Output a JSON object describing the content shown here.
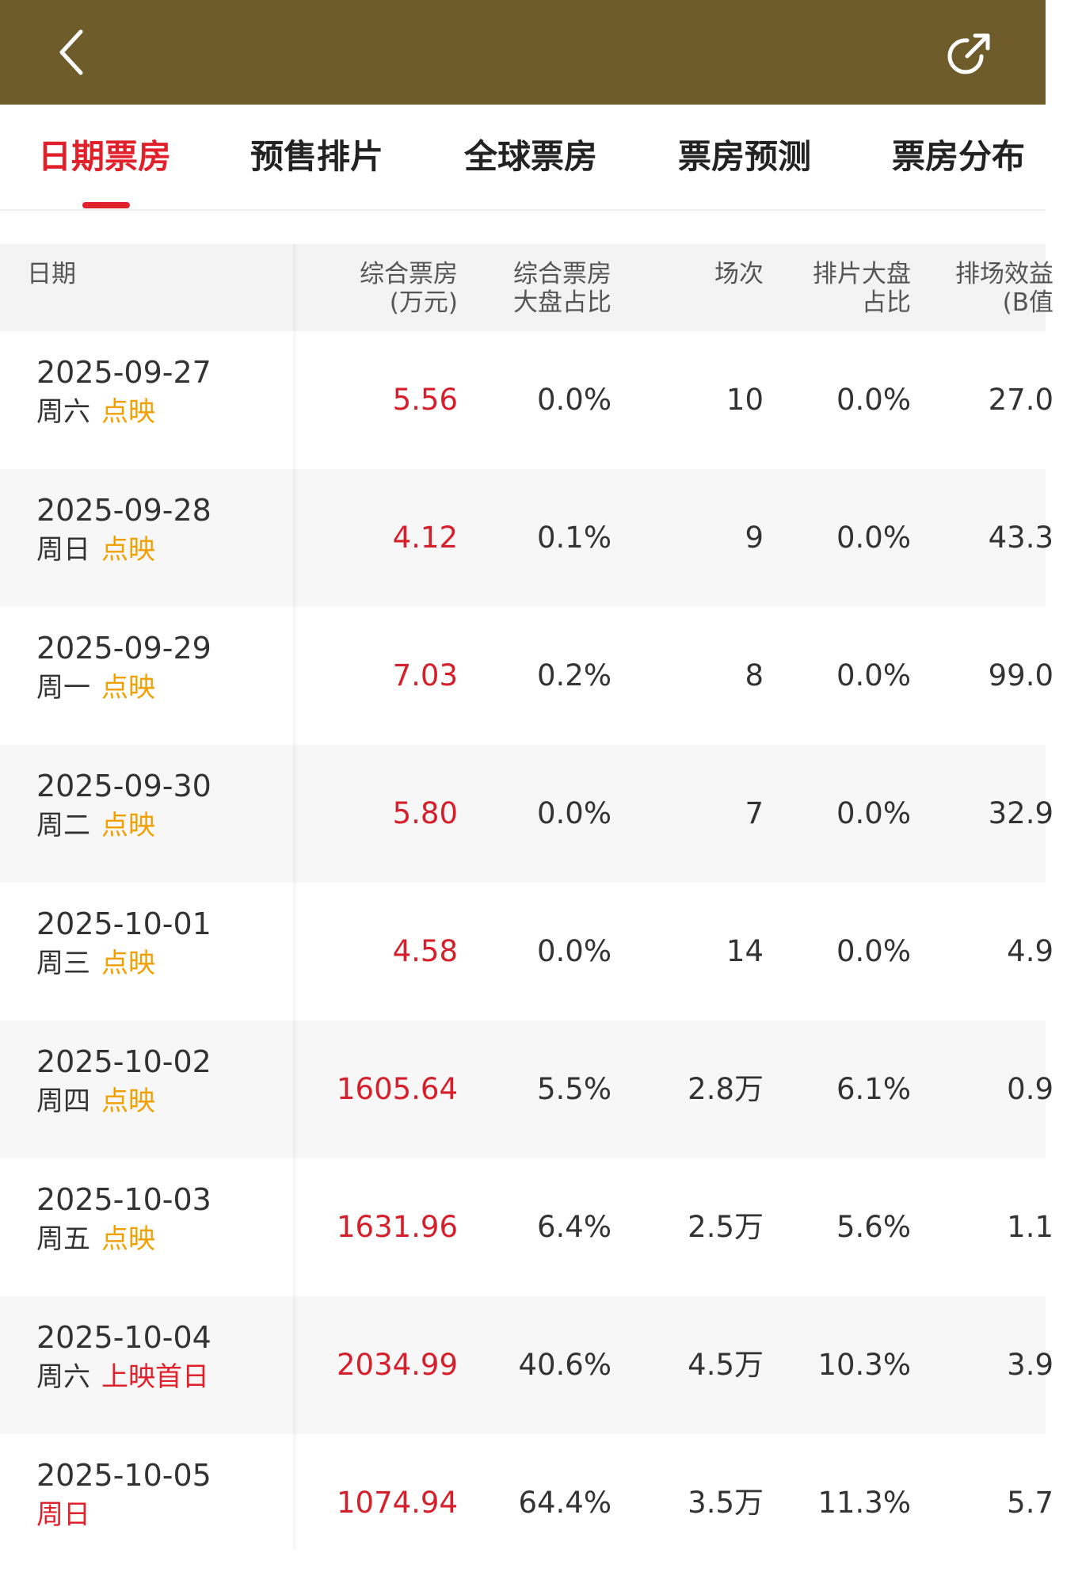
{
  "colors": {
    "topbar": "#6e5d2b",
    "accent_red": "#e0202a",
    "tag_orange": "#f0a000"
  },
  "header": {
    "back_icon": "chevron-left-icon",
    "share_icon": "share-icon"
  },
  "tabs": [
    {
      "label": "日期票房",
      "active": true
    },
    {
      "label": "预售排片",
      "active": false
    },
    {
      "label": "全球票房",
      "active": false
    },
    {
      "label": "票房预测",
      "active": false
    },
    {
      "label": "票房分布",
      "active": false
    }
  ],
  "table": {
    "columns": [
      {
        "label": "日期"
      },
      {
        "label": "综合票房\n(万元)"
      },
      {
        "label": "综合票房\n大盘占比"
      },
      {
        "label": "场次"
      },
      {
        "label": "排片大盘\n占比"
      },
      {
        "label": "排场效益\n(B值"
      }
    ],
    "rows": [
      {
        "date": "2025-09-27",
        "weekday": "周六",
        "tag": "点映",
        "box": "5.56",
        "box_share": "0.0%",
        "shows": "10",
        "show_share": "0.0%",
        "b_value": "27.0"
      },
      {
        "date": "2025-09-28",
        "weekday": "周日",
        "tag": "点映",
        "box": "4.12",
        "box_share": "0.1%",
        "shows": "9",
        "show_share": "0.0%",
        "b_value": "43.3"
      },
      {
        "date": "2025-09-29",
        "weekday": "周一",
        "tag": "点映",
        "box": "7.03",
        "box_share": "0.2%",
        "shows": "8",
        "show_share": "0.0%",
        "b_value": "99.0"
      },
      {
        "date": "2025-09-30",
        "weekday": "周二",
        "tag": "点映",
        "box": "5.80",
        "box_share": "0.0%",
        "shows": "7",
        "show_share": "0.0%",
        "b_value": "32.9"
      },
      {
        "date": "2025-10-01",
        "weekday": "周三",
        "tag": "点映",
        "box": "4.58",
        "box_share": "0.0%",
        "shows": "14",
        "show_share": "0.0%",
        "b_value": "4.9"
      },
      {
        "date": "2025-10-02",
        "weekday": "周四",
        "tag": "点映",
        "box": "1605.64",
        "box_share": "5.5%",
        "shows": "2.8万",
        "show_share": "6.1%",
        "b_value": "0.9"
      },
      {
        "date": "2025-10-03",
        "weekday": "周五",
        "tag": "点映",
        "box": "1631.96",
        "box_share": "6.4%",
        "shows": "2.5万",
        "show_share": "5.6%",
        "b_value": "1.1"
      },
      {
        "date": "2025-10-04",
        "weekday": "周六",
        "tag": "上映首日",
        "box": "2034.99",
        "box_share": "40.6%",
        "shows": "4.5万",
        "show_share": "10.3%",
        "b_value": "3.9"
      },
      {
        "date": "2025-10-05",
        "weekday": "周日",
        "tag": "",
        "box": "1074.94",
        "box_share": "64.4%",
        "shows": "3.5万",
        "show_share": "11.3%",
        "b_value": "5.7"
      }
    ]
  }
}
